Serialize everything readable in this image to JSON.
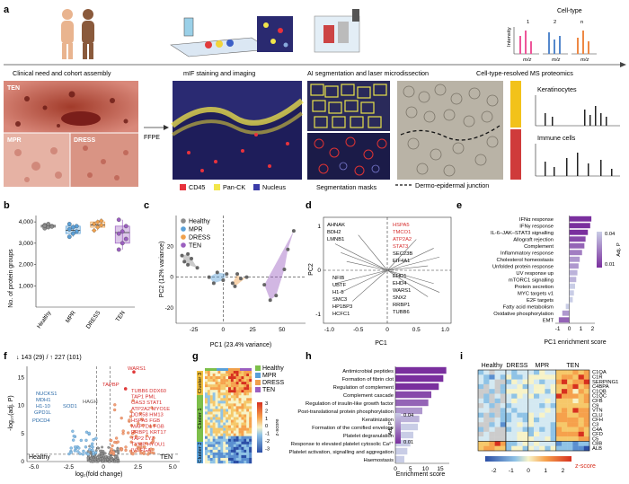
{
  "panels": {
    "a": {
      "letter": "a",
      "stages": [
        "Clinical need and cohort assembly",
        "mIF staining and imaging",
        "AI segmentation and laser microdissection",
        "Cell-type-resolved MS proteomics"
      ],
      "photo_labels": {
        "top": "TEN",
        "bl": "MPR",
        "br": "DRESS"
      },
      "ffpe": "FFPE",
      "legend": [
        {
          "label": "CD45",
          "color": "#e8323c"
        },
        {
          "label": "Pan-CK",
          "color": "#f2e64a"
        },
        {
          "label": "Nucleus",
          "color": "#3b3ca8"
        }
      ],
      "seg_label": "Segmentation masks",
      "dej_label": "Dermo-epidermal junction",
      "celltype": {
        "title": "Cell-type",
        "nums": [
          "1",
          "2",
          "n"
        ],
        "ylabel": "Intensity",
        "xlabel": "m/z"
      },
      "ms_labels": [
        "Keratinocytes",
        "Immune cells"
      ]
    },
    "b": {
      "letter": "b",
      "ylabel": "No. of protein groups",
      "categories": [
        "Healthy",
        "MPR",
        "DRESS",
        "TEN"
      ],
      "yticks": [
        "1,000",
        "2,000",
        "3,000",
        "4,000"
      ]
    },
    "c": {
      "letter": "c",
      "xlabel": "PC1 (23.4% variance)",
      "ylabel": "PC2 (12% variance)",
      "xticks": [
        "-25",
        "0",
        "25",
        "50"
      ],
      "yticks": [
        "-20",
        "0",
        "20"
      ],
      "legend": [
        "Healthy",
        "MPR",
        "DRESS",
        "TEN"
      ]
    },
    "d": {
      "letter": "d",
      "xlabel": "PC1",
      "ylabel": "PC2",
      "xticks": [
        "-1.0",
        "-0.5",
        "0",
        "0.5",
        "1.0"
      ],
      "yticks": [
        "-1",
        "0",
        "1"
      ],
      "genes_ul": [
        "AHNAK",
        "BDH2",
        "LMNB1"
      ],
      "genes_ur_red": [
        "HSPA5",
        "TMCO1",
        "ATP2A2",
        "STAT3"
      ],
      "genes_ur": [
        "SEC23B",
        "EIF4A1"
      ],
      "genes_ll": [
        "NFIB",
        "UBTF",
        "H1-5",
        "SMC3",
        "HP1BP3",
        "HCFC1"
      ],
      "genes_lr": [
        "EHD1",
        "EHD4",
        "WARS1",
        "SNX2",
        "RRBP1",
        "TUBB6"
      ]
    },
    "e": {
      "letter": "e",
      "xlabel": "PC1 enrichment score",
      "legend_title": "Adj. P",
      "legend_ticks": [
        "0.04",
        "0.01"
      ],
      "xticks": [
        "-1",
        "0",
        "1",
        "2"
      ]
    },
    "f": {
      "letter": "f",
      "header": "↓ 143 (29) / ↑ 227 (101)",
      "xlabel": "log₂(fold change)",
      "ylabel": "-log₁₀(adj. P)",
      "xticks": [
        "-5.0",
        "-2.5",
        "0",
        "2.5",
        "5.0"
      ],
      "yticks": [
        "0",
        "5",
        "10",
        "15"
      ],
      "left_group": "Healthy",
      "right_group": "TEN",
      "blue_genes": [
        "NUCKS1",
        "MDH1",
        "H1-10",
        "SOD1",
        "GPD1L",
        "PDCD4"
      ],
      "red_genes": [
        "WARS1",
        "TAPBP",
        "HAGH",
        "TUBB6",
        "DDX60",
        "TAP1",
        "PML",
        "OAS3",
        "STAT1",
        "ATP2A2",
        "MYO1E",
        "DDX58",
        "HM13",
        "HSPA5",
        "FGB",
        "MAP7D1",
        "FGB",
        "RRBP1",
        "KRT17",
        "TAP2",
        "LYZ",
        "TYMP",
        "HYOU1",
        "IVL",
        "FGA"
      ]
    },
    "g": {
      "letter": "g",
      "legend": [
        "Healthy",
        "MPR",
        "DRESS",
        "TEN"
      ],
      "clusters": [
        "Cluster 3",
        "Cluster 1",
        "Cluster 2"
      ],
      "zticks": [
        "3",
        "2",
        "1",
        "0",
        "-1",
        "-2",
        "-3"
      ],
      "zlabel": "z-score"
    },
    "h": {
      "letter": "h",
      "xlabel": "Enrichment score",
      "legend_title": "Adj. P",
      "legend_ticks": [
        "0.04",
        "0.01"
      ],
      "xticks": [
        "0",
        "5",
        "10",
        "15"
      ]
    },
    "i": {
      "letter": "i",
      "groups": [
        "Healthy",
        "DRESS",
        "MPR",
        "TEN"
      ],
      "genes": [
        "C1QA",
        "C1R",
        "SERPING1",
        "C4BPA",
        "C1QB",
        "C1QC",
        "CFB",
        "C9",
        "VTN",
        "CLU",
        "CFH",
        "C3",
        "C4A",
        "CFD",
        "C5",
        "C8B",
        "ALB"
      ],
      "xticks": [
        "-2",
        "-1",
        "0",
        "1",
        "2"
      ],
      "zlabel": "z-score"
    }
  },
  "chart_data": [
    {
      "type": "scatter",
      "panel": "b",
      "categories": [
        "Healthy",
        "MPR",
        "DRESS",
        "TEN"
      ],
      "medians": [
        3800,
        3600,
        3850,
        3500
      ],
      "points": [
        [
          3700,
          3750,
          3800,
          3850,
          3900,
          3780,
          3820
        ],
        [
          3300,
          3450,
          3550,
          3650,
          3750,
          3800,
          3900
        ],
        [
          3600,
          3750,
          3850,
          3900,
          4000,
          4050
        ],
        [
          2700,
          3000,
          3200,
          3450,
          3550,
          3800,
          4100
        ]
      ],
      "ylim": [
        0,
        4300
      ]
    },
    {
      "type": "scatter",
      "panel": "c",
      "series": [
        {
          "name": "Healthy",
          "points": [
            [
              -35,
              14
            ],
            [
              -33,
              10
            ],
            [
              -30,
              8
            ],
            [
              -27,
              12
            ],
            [
              -22,
              6
            ],
            [
              -30,
              15
            ]
          ]
        },
        {
          "name": "MPR",
          "points": [
            [
              -12,
              0
            ],
            [
              -5,
              3
            ],
            [
              0,
              -2
            ],
            [
              -8,
              -4
            ],
            [
              3,
              2
            ]
          ]
        },
        {
          "name": "DRESS",
          "points": [
            [
              8,
              -4
            ],
            [
              12,
              2
            ],
            [
              15,
              -1
            ],
            [
              10,
              -6
            ],
            [
              20,
              0
            ]
          ]
        },
        {
          "name": "TEN",
          "points": [
            [
              35,
              -5
            ],
            [
              45,
              -12
            ],
            [
              55,
              18
            ],
            [
              60,
              30
            ],
            [
              40,
              -15
            ],
            [
              52,
              5
            ]
          ]
        }
      ]
    },
    {
      "type": "bar",
      "panel": "e",
      "categories": [
        "IFNα response",
        "IFNγ response",
        "IL-6–JAK–STAT3 signalling",
        "Allograft rejection",
        "Complement",
        "Inflammatory response",
        "Cholesterol homeostasis",
        "Unfolded protein response",
        "UV response up",
        "mTORC1 signalling",
        "Protein secretion",
        "MYC targets v1",
        "E2F targets",
        "Fatty acid metabolism",
        "Oxidative phosphorylation",
        "EMT"
      ],
      "values": [
        1.9,
        1.8,
        1.6,
        1.4,
        1.3,
        1.1,
        0.9,
        0.8,
        0.7,
        0.6,
        0.5,
        0.4,
        0.3,
        -0.3,
        -0.6,
        -0.9
      ],
      "padj": [
        0.01,
        0.01,
        0.01,
        0.015,
        0.02,
        0.025,
        0.03,
        0.03,
        0.035,
        0.035,
        0.04,
        0.04,
        0.04,
        0.04,
        0.03,
        0.02
      ],
      "xlim": [
        -1.2,
        2.2
      ]
    },
    {
      "type": "bar",
      "panel": "h",
      "categories": [
        "Antimicrobial peptides",
        "Formation of fibrin clot",
        "Regulation of complement",
        "Complement cascade",
        "Regulation of insulin-like growth factor",
        "Post-translational protein phosphorylation",
        "Keratinization",
        "Formation of the cornified envelope",
        "Platelet degranulation",
        "Response to elevated platelet cytosolic Ca²⁺",
        "Platelet activation, signalling and aggregation",
        "Haemostasis"
      ],
      "values": [
        17,
        16,
        14.5,
        12,
        11,
        9,
        8,
        7.5,
        6,
        5,
        4,
        3
      ],
      "padj": [
        0.01,
        0.01,
        0.01,
        0.015,
        0.02,
        0.03,
        0.035,
        0.04,
        0.04,
        0.04,
        0.04,
        0.04
      ],
      "xlim": [
        0,
        18
      ]
    }
  ]
}
